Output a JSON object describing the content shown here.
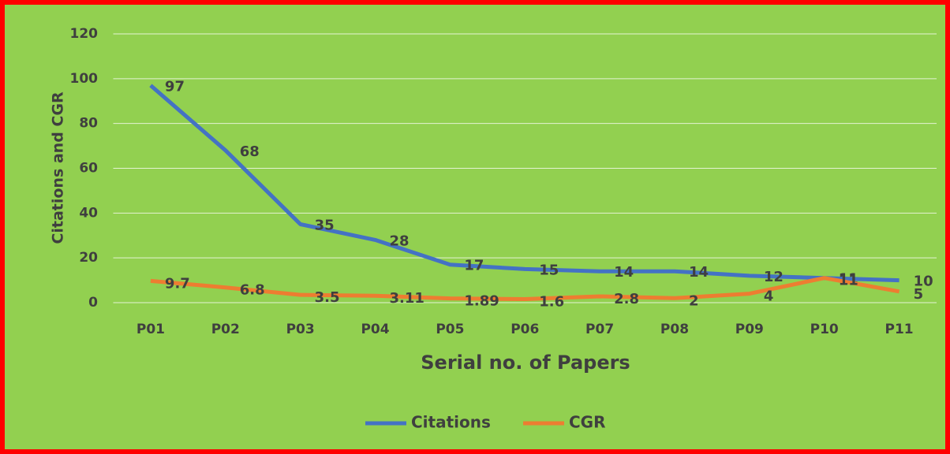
{
  "chart_data": {
    "type": "line",
    "x_label": "Serial no. of Papers",
    "y_label": "Citations and CGR",
    "categories": [
      "P01",
      "P02",
      "P03",
      "P04",
      "P05",
      "P06",
      "P07",
      "P08",
      "P09",
      "P10",
      "P11"
    ],
    "series": [
      {
        "name": "Citations",
        "color": "#4472c4",
        "values": [
          97,
          68,
          35,
          28,
          17,
          15,
          14,
          14,
          12,
          11,
          10
        ]
      },
      {
        "name": "CGR",
        "color": "#ed7d31",
        "values": [
          9.7,
          6.8,
          3.5,
          3.11,
          1.89,
          1.6,
          2.8,
          2,
          4,
          11,
          5
        ]
      }
    ],
    "ylim": [
      0,
      120
    ],
    "yticks": [
      0,
      20,
      40,
      60,
      80,
      100,
      120
    ],
    "grid": true,
    "legend": "bottom",
    "background": "#92d050",
    "border": "#ff0000"
  }
}
